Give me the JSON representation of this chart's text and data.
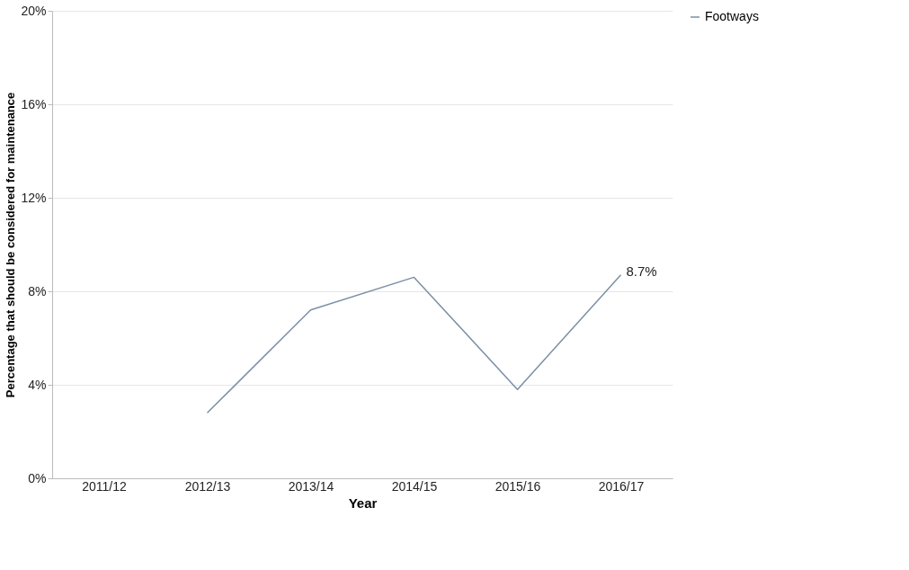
{
  "chart_data": {
    "type": "line",
    "xlabel": "Year",
    "ylabel": "Percentage that should be considered for maintenance",
    "categories": [
      "2011/12",
      "2012/13",
      "2013/14",
      "2014/15",
      "2015/16",
      "2016/17"
    ],
    "series": [
      {
        "name": "Footways",
        "color": "#7b8fa6",
        "values": [
          null,
          2.8,
          7.2,
          8.6,
          3.8,
          8.7
        ],
        "value_labels": [
          null,
          null,
          null,
          null,
          null,
          "8.7%"
        ]
      }
    ],
    "ylim": [
      0,
      20
    ],
    "yticks": [
      {
        "value": 0,
        "label": "0%"
      },
      {
        "value": 4,
        "label": "4%"
      },
      {
        "value": 8,
        "label": "8%"
      },
      {
        "value": 12,
        "label": "12%"
      },
      {
        "value": 16,
        "label": "16%"
      },
      {
        "value": 20,
        "label": "20%"
      }
    ],
    "grid": "y",
    "legend": "right",
    "marker": "none",
    "line_style": "solid"
  }
}
